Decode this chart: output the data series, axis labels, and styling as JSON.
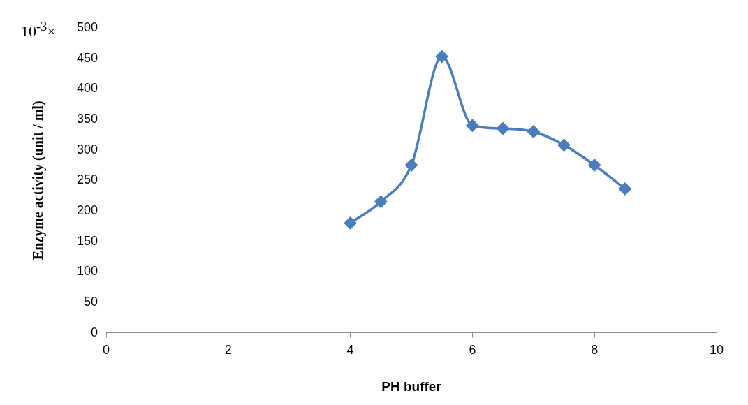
{
  "chart_data": {
    "type": "line",
    "xlabel": "PH buffer",
    "ylabel": "Enzyme activity (unit / ml)",
    "annotations": [
      "10$^{-3}$×"
    ],
    "x": [
      4,
      4.5,
      5,
      5.5,
      6,
      6.5,
      7,
      7.5,
      8,
      8.5
    ],
    "series": [
      {
        "color": "#4a7ebb",
        "values": [
          180,
          215,
          275,
          453,
          340,
          335,
          330,
          308,
          275,
          236
        ]
      }
    ],
    "xlim": [
      0,
      10
    ],
    "xticks": [
      0,
      2,
      4,
      6,
      8,
      10
    ],
    "ylim": [
      0,
      500
    ],
    "yticks": [
      0,
      50,
      100,
      150,
      200,
      250,
      300,
      350,
      400,
      450,
      500
    ],
    "grid": false,
    "legend": false,
    "marker": "diamond",
    "line_style": "solid"
  }
}
